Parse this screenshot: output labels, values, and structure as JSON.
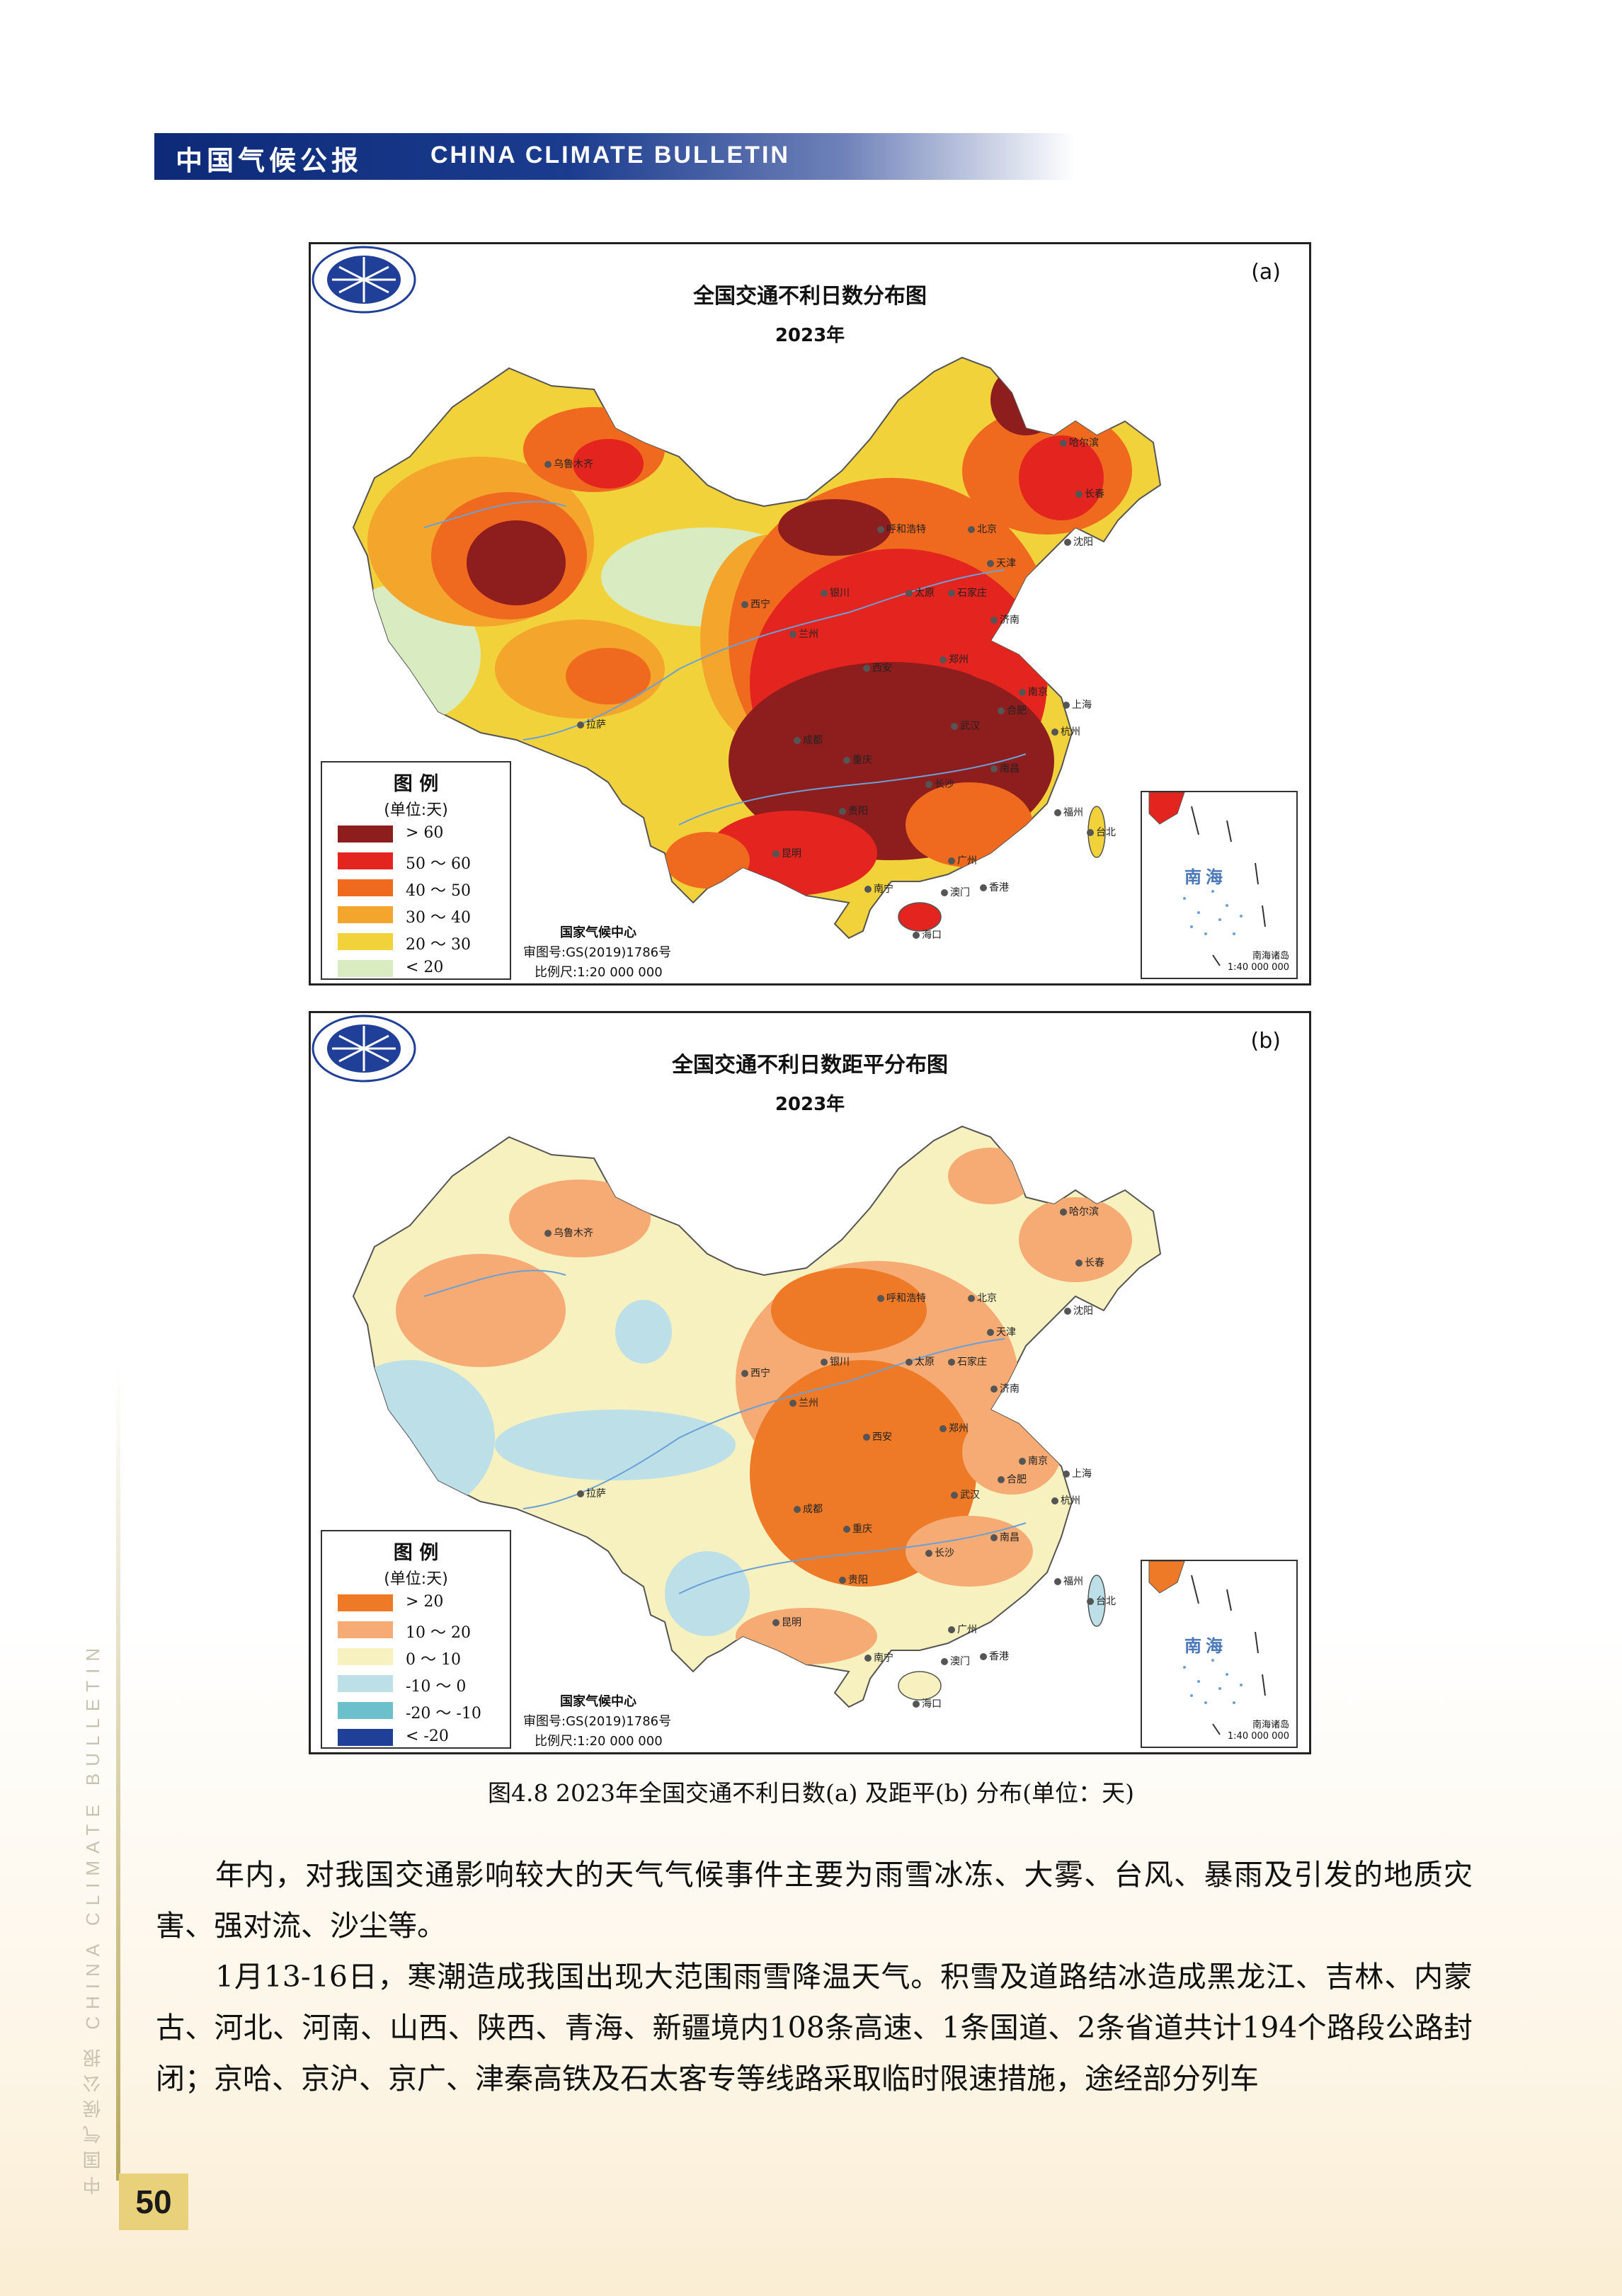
{
  "header": {
    "title_cn": "中国气候公报",
    "title_en": "CHINA CLIMATE BULLETIN"
  },
  "side": {
    "running_title": "中国气候公报  CHINA CLIMATE BULLETIN"
  },
  "page_number": "50",
  "maps": [
    {
      "tag": "(a)",
      "title": "全国交通不利日数分布图",
      "year": "2023年",
      "legend_title": "图 例",
      "legend_unit": "(单位:天)",
      "legend": [
        {
          "label": "> 60",
          "color": "#8e1d1d"
        },
        {
          "label": "50 ～ 60",
          "color": "#e3241f"
        },
        {
          "label": "40 ～ 50",
          "color": "#ef6a1f"
        },
        {
          "label": "30 ～ 40",
          "color": "#f4a52c"
        },
        {
          "label": "20 ～ 30",
          "color": "#f2d23a"
        },
        {
          "label": "< 20",
          "color": "#d9ebc1"
        }
      ],
      "credit_org": "国家气候中心",
      "credit_review": "审图号:GS(2019)1786号",
      "credit_scale": "比例尺:1:20 000 000",
      "inset_label": "南海",
      "inset_foot1": "南海诸岛",
      "inset_foot2": "1:40 000 000",
      "cities": [
        "乌鲁木齐",
        "呼和浩特",
        "北京",
        "哈尔滨",
        "长春",
        "沈阳",
        "天津",
        "石家庄",
        "太原",
        "银川",
        "西宁",
        "兰州",
        "济南",
        "郑州",
        "西安",
        "南京",
        "合肥",
        "上海",
        "杭州",
        "武汉",
        "成都",
        "重庆",
        "拉萨",
        "长沙",
        "南昌",
        "福州",
        "台北",
        "贵阳",
        "昆明",
        "广州",
        "南宁",
        "海口",
        "香港",
        "澳门"
      ]
    },
    {
      "tag": "(b)",
      "title": "全国交通不利日数距平分布图",
      "year": "2023年",
      "legend_title": "图 例",
      "legend_unit": "(单位:天)",
      "legend": [
        {
          "label": "> 20",
          "color": "#ee7a28"
        },
        {
          "label": "10 ～ 20",
          "color": "#f5ab73"
        },
        {
          "label": "0 ～ 10",
          "color": "#f7f1bf"
        },
        {
          "label": "-10 ～ 0",
          "color": "#bcdfe8"
        },
        {
          "label": "-20 ～ -10",
          "color": "#6cc0cc"
        },
        {
          "label": "< -20",
          "color": "#1f3f98"
        }
      ],
      "credit_org": "国家气候中心",
      "credit_review": "审图号:GS(2019)1786号",
      "credit_scale": "比例尺:1:20 000 000",
      "inset_label": "南海",
      "inset_foot1": "南海诸岛",
      "inset_foot2": "1:40 000 000",
      "cities": [
        "乌鲁木齐",
        "呼和浩特",
        "北京",
        "哈尔滨",
        "长春",
        "沈阳",
        "天津",
        "石家庄",
        "太原",
        "银川",
        "西宁",
        "兰州",
        "济南",
        "郑州",
        "西安",
        "南京",
        "合肥",
        "上海",
        "杭州",
        "武汉",
        "成都",
        "重庆",
        "拉萨",
        "长沙",
        "南昌",
        "福州",
        "台北",
        "贵阳",
        "昆明",
        "广州",
        "南宁",
        "海口",
        "香港",
        "澳门"
      ]
    }
  ],
  "caption": "图4.8  2023年全国交通不利日数(a) 及距平(b) 分布(单位：天)",
  "paragraphs": [
    "年内，对我国交通影响较大的天气气候事件主要为雨雪冰冻、大雾、台风、暴雨及引发的地质灾害、强对流、沙尘等。",
    "1月13-16日，寒潮造成我国出现大范围雨雪降温天气。积雪及道路结冰造成黑龙江、吉林、内蒙古、河北、河南、山西、陕西、青海、新疆境内108条高速、1条国道、2条省道共计194个路段公路封闭；京哈、京沪、京广、津秦高铁及石太客专等线路采取临时限速措施，途经部分列车"
  ]
}
